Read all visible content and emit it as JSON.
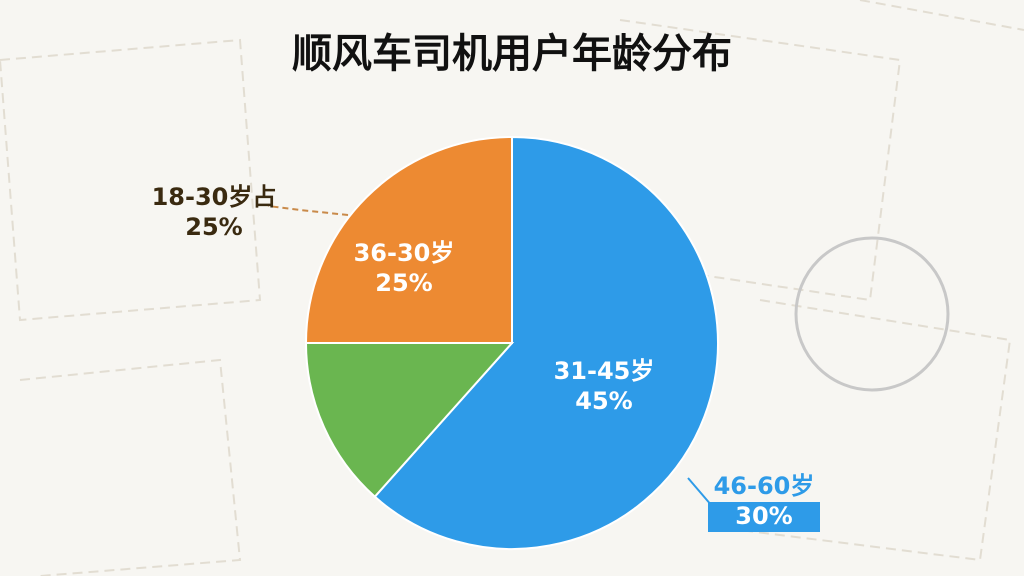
{
  "chart_data": {
    "type": "pie",
    "title": "顺风车司机用户年龄分布",
    "values": [
      61.6,
      13.4,
      25
    ],
    "colors": [
      "#2e9be8",
      "#6ab650",
      "#ed8a32"
    ],
    "annotations": [
      [
        "31-45岁",
        "45%"
      ],
      [
        "36-30岁",
        "25%"
      ],
      [
        "18-30岁占",
        "25%"
      ],
      [
        "46-60岁",
        "30%"
      ]
    ]
  }
}
